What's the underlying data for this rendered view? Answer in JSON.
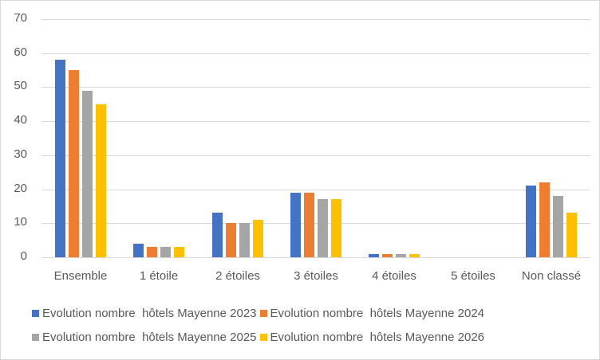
{
  "chart_data": {
    "type": "bar",
    "title": "",
    "xlabel": "",
    "ylabel": "",
    "ylim": [
      0,
      70
    ],
    "yticks": [
      0,
      10,
      20,
      30,
      40,
      50,
      60,
      70
    ],
    "grid": true,
    "legend_position": "bottom",
    "categories": [
      "Ensemble",
      "1 étoile",
      "2 étoiles",
      "3 étoiles",
      "4 étoiles",
      "5 étoiles",
      "Non classé"
    ],
    "series": [
      {
        "name": "Evolution nombre  hôtels Mayenne 2023",
        "color": "#4472C4",
        "values": [
          58,
          4,
          13,
          19,
          1,
          0,
          21
        ]
      },
      {
        "name": "Evolution nombre  hôtels Mayenne 2024",
        "color": "#ED7D31",
        "values": [
          55,
          3,
          10,
          19,
          1,
          0,
          22
        ]
      },
      {
        "name": "Evolution nombre  hôtels Mayenne 2025",
        "color": "#A5A5A5",
        "values": [
          49,
          3,
          10,
          17,
          1,
          0,
          18
        ]
      },
      {
        "name": "Evolution nombre  hôtels Mayenne 2026",
        "color": "#FFC000",
        "values": [
          45,
          3,
          11,
          17,
          1,
          0,
          13
        ]
      }
    ]
  },
  "yaxis": {
    "ticks": [
      "70",
      "60",
      "50",
      "40",
      "30",
      "20",
      "10",
      "0"
    ]
  },
  "xaxis": {
    "labels": [
      "Ensemble",
      "1 étoile",
      "2 étoiles",
      "3 étoiles",
      "4 étoiles",
      "5 étoiles",
      "Non classé"
    ]
  },
  "legend": {
    "items": [
      {
        "label": "Evolution nombre  hôtels Mayenne 2023",
        "color": "#4472C4"
      },
      {
        "label": "Evolution nombre  hôtels Mayenne 2024",
        "color": "#ED7D31"
      },
      {
        "label": "Evolution nombre  hôtels Mayenne 2025",
        "color": "#A5A5A5"
      },
      {
        "label": "Evolution nombre  hôtels Mayenne 2026",
        "color": "#FFC000"
      }
    ]
  }
}
